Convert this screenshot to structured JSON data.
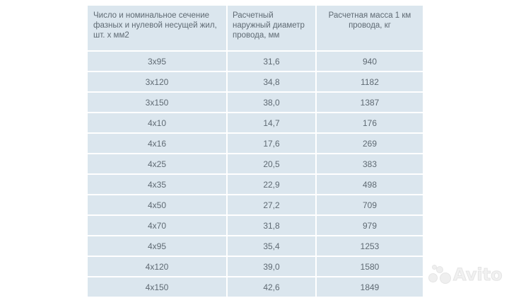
{
  "table": {
    "headers": [
      "Число  и номинальное сечение фазных и нулевой  несущей жил, шт. х мм2",
      "Расчетный наружный диаметр провода, мм",
      "Расчетная  масса 1 км провода, кг"
    ],
    "rows": [
      [
        "3х95",
        "31,6",
        "940"
      ],
      [
        "3х120",
        "34,8",
        "1182"
      ],
      [
        "3х150",
        "38,0",
        "1387"
      ],
      [
        "4х10",
        "14,7",
        "176"
      ],
      [
        "4х16",
        "17,6",
        "269"
      ],
      [
        "4х25",
        "20,5",
        "383"
      ],
      [
        "4х35",
        "22,9",
        "498"
      ],
      [
        "4х50",
        "27,2",
        "709"
      ],
      [
        "4х70",
        "31,8",
        "979"
      ],
      [
        "4х95",
        "35,4",
        "1253"
      ],
      [
        "4х120",
        "39,0",
        "1580"
      ],
      [
        "4х150",
        "42,6",
        "1849"
      ]
    ]
  },
  "watermark": {
    "text": "Avito",
    "icon": "avito-dots-icon"
  },
  "colors": {
    "cell_bg": "#dbe6ee",
    "text": "#5f6a73",
    "grid": "#ffffff"
  }
}
